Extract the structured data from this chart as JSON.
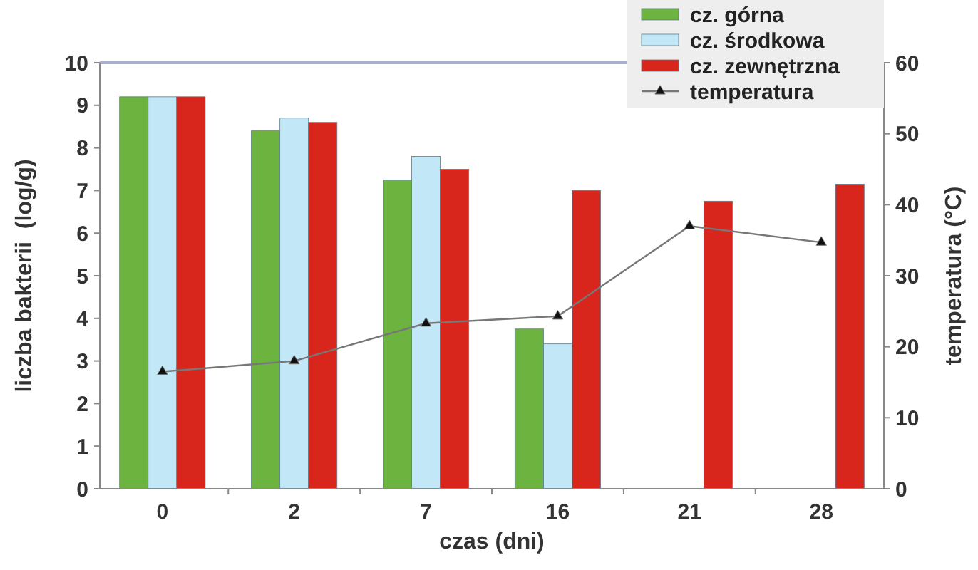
{
  "chart_data": {
    "type": "bar",
    "xlabel": "czas (dni)",
    "ylabel": "liczba bakterii  (log/g)",
    "y2label": "temperatura (°C)",
    "categories": [
      "0",
      "2",
      "7",
      "16",
      "21",
      "28"
    ],
    "series": [
      {
        "name": "cz. górna",
        "color": "#6db33f",
        "values": [
          9.2,
          8.4,
          7.25,
          3.75,
          null,
          null
        ]
      },
      {
        "name": "cz. środkowa",
        "color": "#c2e8f7",
        "values": [
          9.2,
          8.7,
          7.8,
          3.4,
          null,
          null
        ]
      },
      {
        "name": "cz. zewnętrzna",
        "color": "#d9261c",
        "values": [
          9.2,
          8.6,
          7.5,
          7.0,
          6.75,
          7.15
        ]
      },
      {
        "name": "temperatura",
        "type": "line",
        "axis": "y2",
        "color": "#777777",
        "marker": "triangle",
        "values": [
          16.5,
          18,
          23.3,
          24.3,
          37,
          34.7
        ]
      }
    ],
    "ylim": [
      0,
      10
    ],
    "yticks": [
      0,
      1,
      2,
      3,
      4,
      5,
      6,
      7,
      8,
      9,
      10
    ],
    "y2lim": [
      0,
      60
    ],
    "y2ticks": [
      0,
      10,
      20,
      30,
      40,
      50,
      60
    ],
    "legend": "top right"
  }
}
